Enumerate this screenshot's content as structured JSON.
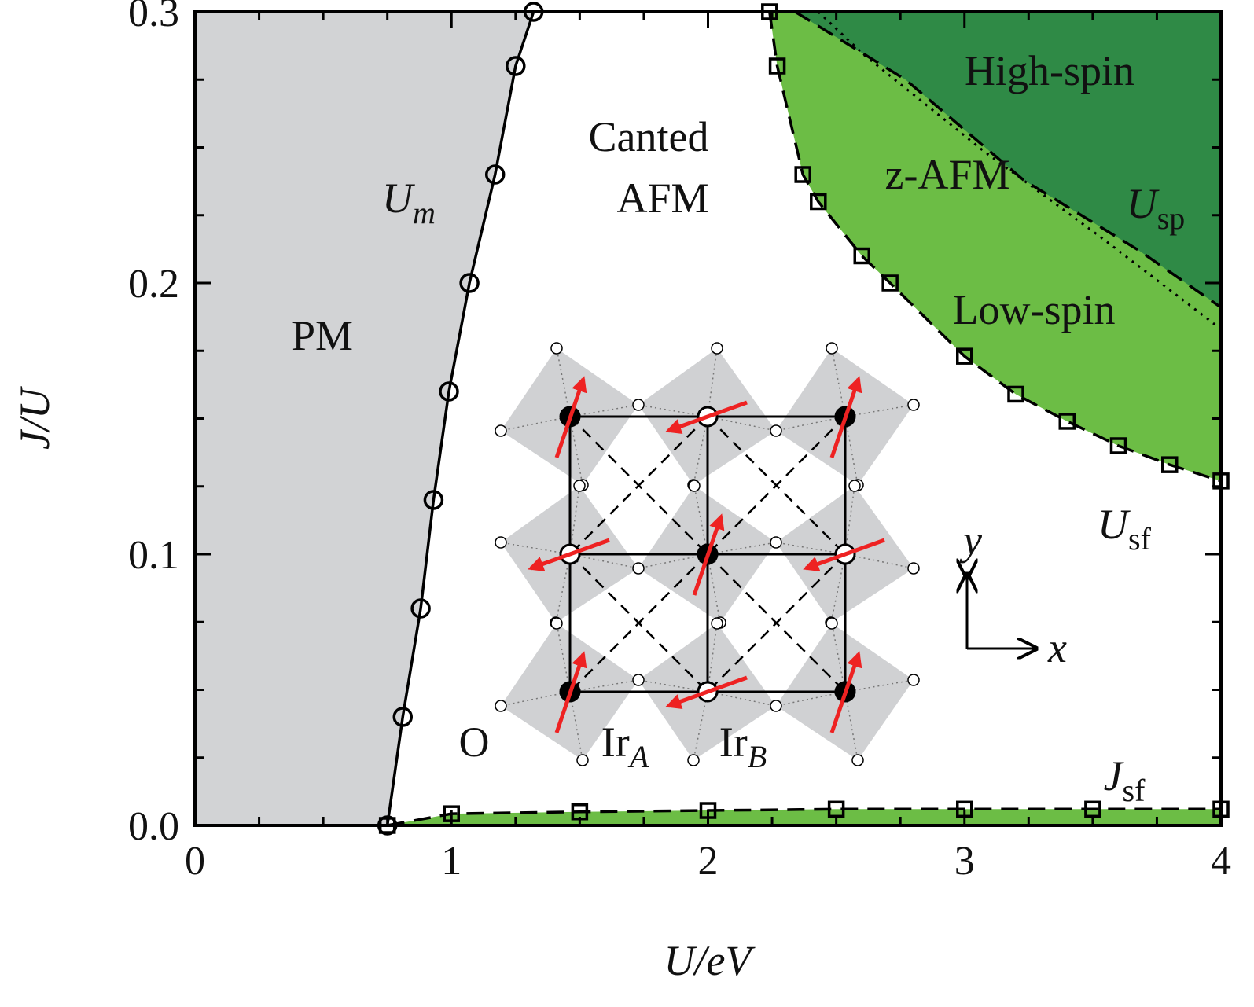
{
  "chart_data": {
    "type": "line",
    "xlabel": "U/eV",
    "ylabel": "J/U",
    "xlim": [
      0,
      4
    ],
    "ylim": [
      0,
      0.3
    ],
    "xticks": [
      0,
      1,
      2,
      3,
      4
    ],
    "yticks": [
      {
        "value": 0,
        "label": "0.0"
      },
      0.1,
      0.2,
      0.3
    ],
    "xticks_minor": [
      0.25,
      0.5,
      0.75,
      1.25,
      1.5,
      1.75,
      2.25,
      2.5,
      2.75,
      3.25,
      3.5,
      3.75
    ],
    "yticks_minor": [
      0.025,
      0.05,
      0.075,
      0.125,
      0.15,
      0.175,
      0.225,
      0.25,
      0.275
    ],
    "series": [
      {
        "color": "#000000",
        "marker": "circle",
        "line": "solid",
        "fill": "#d2d3d5",
        "fill_to": "left",
        "x": [
          0.75,
          0.81,
          0.88,
          0.93,
          0.99,
          1.07,
          1.17,
          1.25,
          1.32
        ],
        "values": [
          0,
          0.04,
          0.08,
          0.12,
          0.16,
          0.2,
          0.24,
          0.28,
          0.3
        ]
      },
      {
        "color": "#000000",
        "marker": "square",
        "line": "dashed",
        "fill": "#6cbd45",
        "fill_to": "top-right",
        "x": [
          2.24,
          2.27,
          2.37,
          2.43,
          2.6,
          2.71,
          3.0,
          3.2,
          3.4,
          3.6,
          3.8,
          4.0
        ],
        "values": [
          0.3,
          0.28,
          0.24,
          0.23,
          0.21,
          0.2,
          0.173,
          0.159,
          0.149,
          0.14,
          0.133,
          0.127
        ]
      },
      {
        "color": "#000000",
        "marker": "square",
        "line": "dashed",
        "fill": "#6cbd45",
        "fill_to": "bottom",
        "x": [
          0.75,
          1.0,
          1.5,
          2.0,
          2.5,
          3.0,
          3.5,
          4.0
        ],
        "values": [
          0,
          0.0043,
          0.005,
          0.0055,
          0.006,
          0.006,
          0.006,
          0.006
        ]
      },
      {
        "color": "#000000",
        "marker": "none",
        "line": "dashed",
        "fill": "#2f8a46",
        "fill_to": "top-right",
        "x": [
          2.34,
          2.77,
          3.23,
          3.68,
          4.0
        ],
        "values": [
          0.3,
          0.275,
          0.238,
          0.212,
          0.191
        ]
      },
      {
        "color": "#000000",
        "marker": "none",
        "line": "dotted",
        "x": [
          2.43,
          2.61,
          3.07,
          3.53,
          4.0
        ],
        "values": [
          0.3,
          0.284,
          0.249,
          0.217,
          0.183
        ]
      }
    ],
    "annotations": [
      {
        "text": "PM"
      },
      {
        "text": "Canted"
      },
      {
        "text": "AFM"
      },
      {
        "text": "z-AFM"
      },
      {
        "text": "High-spin"
      },
      {
        "text": "Low-spin"
      },
      {
        "text": "U",
        "sub": "m"
      },
      {
        "text": "U",
        "sub": "sp"
      },
      {
        "text": "U",
        "sub": "sf"
      },
      {
        "text": "J",
        "sub": "sf"
      },
      {
        "text": "O"
      },
      {
        "text": "Ir",
        "sub": "A"
      },
      {
        "text": "Ir",
        "sub": "B"
      },
      {
        "text": "y"
      },
      {
        "text": "x"
      }
    ]
  }
}
